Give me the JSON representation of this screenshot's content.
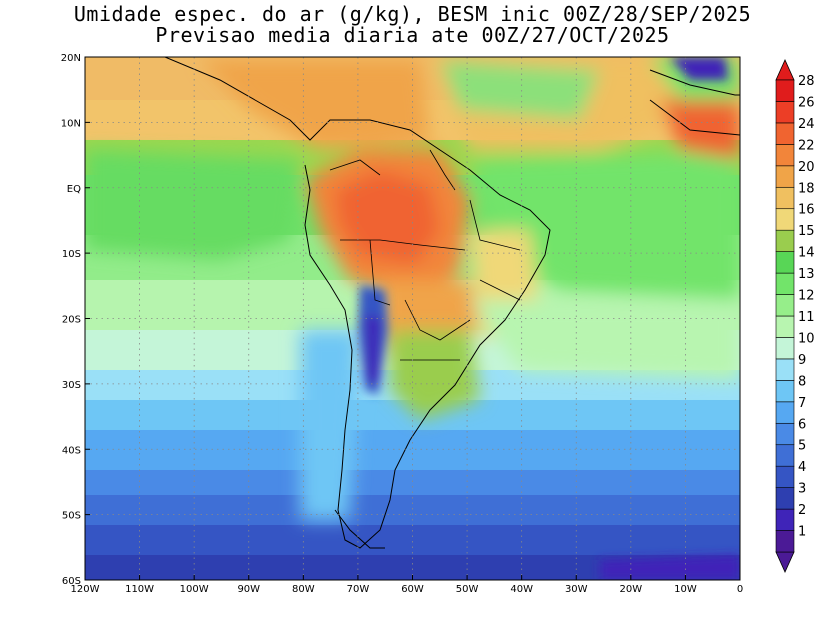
{
  "title": {
    "line1": "Umidade espec. do ar (g/kg), BESM inic 00Z/28/SEP/2025",
    "line2": "Previsao media diaria ate 00Z/27/OCT/2025"
  },
  "map": {
    "lon_ticks": [
      "120W",
      "110W",
      "100W",
      "90W",
      "80W",
      "70W",
      "60W",
      "50W",
      "40W",
      "30W",
      "20W",
      "10W",
      "0"
    ],
    "lat_ticks": [
      "20N",
      "10N",
      "EQ",
      "10S",
      "20S",
      "30S",
      "40S",
      "50S",
      "60S"
    ],
    "lon_range": [
      -120,
      0
    ],
    "lat_range": [
      -60,
      20
    ],
    "grid": "dotted"
  },
  "colorbar": {
    "labels": [
      "1",
      "2",
      "3",
      "4",
      "5",
      "6",
      "7",
      "8",
      "9",
      "10",
      "11",
      "12",
      "13",
      "14",
      "15",
      "16",
      "18",
      "20",
      "22",
      "24",
      "26",
      "28"
    ],
    "colors": [
      "#4b1a96",
      "#3f24b8",
      "#2e3fb0",
      "#3555c4",
      "#3f6fd6",
      "#4a8ae6",
      "#56a8f2",
      "#6ec6f5",
      "#9ae0f7",
      "#c4f5d8",
      "#b8f5b0",
      "#96ee8a",
      "#72e46a",
      "#58d656",
      "#9acd4e",
      "#f0d878",
      "#f0c060",
      "#f0a448",
      "#f2853a",
      "#f06430",
      "#ec3e26",
      "#e01c1c"
    ],
    "extend": "both"
  }
}
